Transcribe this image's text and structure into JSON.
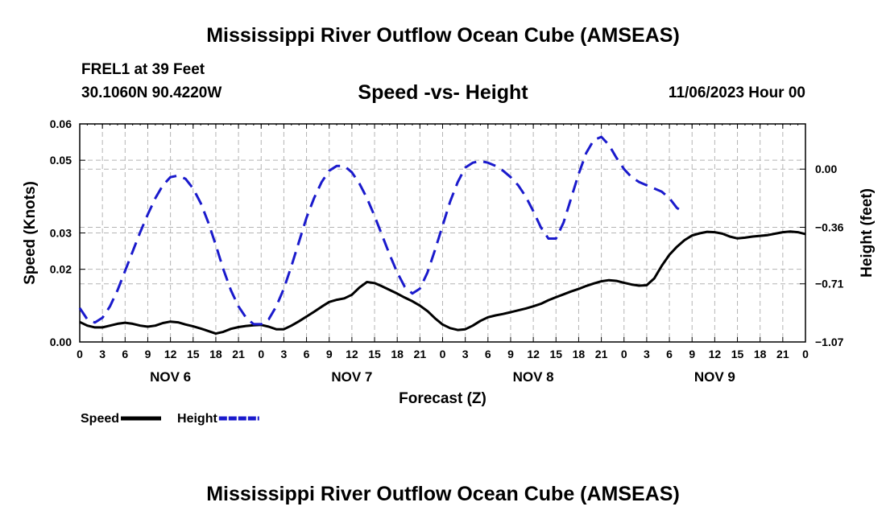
{
  "page": {
    "title": "Mississippi River Outflow Ocean Cube (AMSEAS)",
    "bottom_title": "Mississippi River Outflow Ocean Cube (AMSEAS)",
    "station": "FREL1 at 39 Feet",
    "coordinates": "30.1060N  90.4220W",
    "subtitle": "Speed -vs- Height",
    "datetime": "11/06/2023 Hour 00"
  },
  "chart_data": {
    "type": "line",
    "title": "Speed -vs- Height",
    "xlabel": "Forecast (Z)",
    "ylabel_left": "Speed (Knots)",
    "ylabel_right": "Height (feet)",
    "x_unit": "hours since 11/06/2023 00Z",
    "x_range": [
      0,
      96
    ],
    "x_tick_hours": [
      0,
      3,
      6,
      9,
      12,
      15,
      18,
      21,
      24,
      27,
      30,
      33,
      36,
      39,
      42,
      45,
      48,
      51,
      54,
      57,
      60,
      63,
      66,
      69,
      72,
      75,
      78,
      81,
      84,
      87,
      90,
      93,
      96
    ],
    "x_tick_labels": [
      "0",
      "3",
      "6",
      "9",
      "12",
      "15",
      "18",
      "21",
      "0",
      "3",
      "6",
      "9",
      "12",
      "15",
      "18",
      "21",
      "0",
      "3",
      "6",
      "9",
      "12",
      "15",
      "18",
      "21",
      "0",
      "3",
      "6",
      "9",
      "12",
      "15",
      "18",
      "21",
      "0"
    ],
    "day_labels": [
      {
        "label": "NOV 6",
        "hour": 12
      },
      {
        "label": "NOV 7",
        "hour": 36
      },
      {
        "label": "NOV 8",
        "hour": 60
      },
      {
        "label": "NOV 9",
        "hour": 84
      }
    ],
    "left_axis": {
      "range": [
        0,
        0.06
      ],
      "ticks": [
        0.0,
        0.02,
        0.03,
        0.05,
        0.06
      ],
      "tick_labels": [
        "0.00",
        "0.02",
        "0.03",
        "0.05",
        "0.06"
      ]
    },
    "right_axis": {
      "range": [
        -1.07,
        0.28
      ],
      "ticks": [
        -1.07,
        -0.71,
        -0.36,
        0.0
      ],
      "tick_labels": [
        "−1.07",
        "−0.71",
        "−0.36",
        "0.00"
      ]
    },
    "grid": true,
    "legend_position": "bottom-left",
    "series": [
      {
        "name": "Speed",
        "axis": "left",
        "color": "#000000",
        "dash": "solid",
        "points": [
          [
            0,
            0.0055
          ],
          [
            1,
            0.0045
          ],
          [
            2,
            0.004
          ],
          [
            3,
            0.004
          ],
          [
            4,
            0.0045
          ],
          [
            5,
            0.005
          ],
          [
            6,
            0.0053
          ],
          [
            7,
            0.005
          ],
          [
            8,
            0.0045
          ],
          [
            9,
            0.0042
          ],
          [
            10,
            0.0045
          ],
          [
            11,
            0.0052
          ],
          [
            12,
            0.0056
          ],
          [
            13,
            0.0054
          ],
          [
            14,
            0.0048
          ],
          [
            15,
            0.0043
          ],
          [
            16,
            0.0037
          ],
          [
            17,
            0.003
          ],
          [
            18,
            0.0023
          ],
          [
            19,
            0.0028
          ],
          [
            20,
            0.0036
          ],
          [
            21,
            0.0041
          ],
          [
            22,
            0.0044
          ],
          [
            23,
            0.0046
          ],
          [
            24,
            0.0047
          ],
          [
            25,
            0.0042
          ],
          [
            26,
            0.0035
          ],
          [
            27,
            0.0035
          ],
          [
            28,
            0.0045
          ],
          [
            29,
            0.0057
          ],
          [
            30,
            0.007
          ],
          [
            31,
            0.0083
          ],
          [
            32,
            0.0097
          ],
          [
            33,
            0.011
          ],
          [
            34,
            0.0116
          ],
          [
            35,
            0.012
          ],
          [
            36,
            0.013
          ],
          [
            37,
            0.015
          ],
          [
            38,
            0.0165
          ],
          [
            39,
            0.0162
          ],
          [
            40,
            0.0153
          ],
          [
            41,
            0.0143
          ],
          [
            42,
            0.0133
          ],
          [
            43,
            0.0122
          ],
          [
            44,
            0.0112
          ],
          [
            45,
            0.01
          ],
          [
            46,
            0.0085
          ],
          [
            47,
            0.0065
          ],
          [
            48,
            0.0048
          ],
          [
            49,
            0.0038
          ],
          [
            50,
            0.0033
          ],
          [
            51,
            0.0035
          ],
          [
            52,
            0.0045
          ],
          [
            53,
            0.0058
          ],
          [
            54,
            0.0068
          ],
          [
            55,
            0.0073
          ],
          [
            56,
            0.0077
          ],
          [
            57,
            0.0082
          ],
          [
            58,
            0.0087
          ],
          [
            59,
            0.0092
          ],
          [
            60,
            0.0098
          ],
          [
            61,
            0.0105
          ],
          [
            62,
            0.0115
          ],
          [
            63,
            0.0123
          ],
          [
            64,
            0.0131
          ],
          [
            65,
            0.0139
          ],
          [
            66,
            0.0146
          ],
          [
            67,
            0.0154
          ],
          [
            68,
            0.0161
          ],
          [
            69,
            0.0167
          ],
          [
            70,
            0.017
          ],
          [
            71,
            0.0168
          ],
          [
            72,
            0.0163
          ],
          [
            73,
            0.0158
          ],
          [
            74,
            0.0155
          ],
          [
            75,
            0.0156
          ],
          [
            76,
            0.0175
          ],
          [
            77,
            0.021
          ],
          [
            78,
            0.024
          ],
          [
            79,
            0.0262
          ],
          [
            80,
            0.028
          ],
          [
            81,
            0.0293
          ],
          [
            82,
            0.0299
          ],
          [
            83,
            0.0303
          ],
          [
            84,
            0.0302
          ],
          [
            85,
            0.0298
          ],
          [
            86,
            0.029
          ],
          [
            87,
            0.0285
          ],
          [
            88,
            0.0287
          ],
          [
            89,
            0.029
          ],
          [
            90,
            0.0292
          ],
          [
            91,
            0.0294
          ],
          [
            92,
            0.0298
          ],
          [
            93,
            0.0302
          ],
          [
            94,
            0.0304
          ],
          [
            95,
            0.0302
          ],
          [
            96,
            0.0297
          ]
        ]
      },
      {
        "name": "Height",
        "axis": "right",
        "color": "#1a1acc",
        "dash": "dashed",
        "points": [
          [
            0,
            -0.86
          ],
          [
            1,
            -0.93
          ],
          [
            2,
            -0.95
          ],
          [
            3,
            -0.92
          ],
          [
            4,
            -0.85
          ],
          [
            5,
            -0.75
          ],
          [
            6,
            -0.63
          ],
          [
            7,
            -0.51
          ],
          [
            8,
            -0.39
          ],
          [
            9,
            -0.28
          ],
          [
            10,
            -0.18
          ],
          [
            11,
            -0.1
          ],
          [
            12,
            -0.05
          ],
          [
            13,
            -0.04
          ],
          [
            14,
            -0.06
          ],
          [
            15,
            -0.12
          ],
          [
            16,
            -0.21
          ],
          [
            17,
            -0.33
          ],
          [
            18,
            -0.47
          ],
          [
            19,
            -0.62
          ],
          [
            20,
            -0.75
          ],
          [
            21,
            -0.85
          ],
          [
            22,
            -0.92
          ],
          [
            23,
            -0.96
          ],
          [
            24,
            -0.96
          ],
          [
            25,
            -0.93
          ],
          [
            26,
            -0.85
          ],
          [
            27,
            -0.74
          ],
          [
            28,
            -0.6
          ],
          [
            29,
            -0.45
          ],
          [
            30,
            -0.3
          ],
          [
            31,
            -0.18
          ],
          [
            32,
            -0.08
          ],
          [
            33,
            -0.01
          ],
          [
            34,
            0.02
          ],
          [
            35,
            0.02
          ],
          [
            36,
            -0.02
          ],
          [
            37,
            -0.09
          ],
          [
            38,
            -0.18
          ],
          [
            39,
            -0.29
          ],
          [
            40,
            -0.41
          ],
          [
            41,
            -0.53
          ],
          [
            42,
            -0.64
          ],
          [
            43,
            -0.73
          ],
          [
            44,
            -0.77
          ],
          [
            45,
            -0.74
          ],
          [
            46,
            -0.64
          ],
          [
            47,
            -0.5
          ],
          [
            48,
            -0.35
          ],
          [
            49,
            -0.2
          ],
          [
            50,
            -0.08
          ],
          [
            51,
            0.01
          ],
          [
            52,
            0.04
          ],
          [
            53,
            0.05
          ],
          [
            54,
            0.04
          ],
          [
            55,
            0.02
          ],
          [
            56,
            -0.01
          ],
          [
            57,
            -0.05
          ],
          [
            58,
            -0.1
          ],
          [
            59,
            -0.17
          ],
          [
            60,
            -0.26
          ],
          [
            61,
            -0.36
          ],
          [
            62,
            -0.43
          ],
          [
            63,
            -0.43
          ],
          [
            64,
            -0.33
          ],
          [
            65,
            -0.18
          ],
          [
            66,
            -0.03
          ],
          [
            67,
            0.1
          ],
          [
            68,
            0.18
          ],
          [
            69,
            0.2
          ],
          [
            70,
            0.15
          ],
          [
            71,
            0.07
          ],
          [
            72,
            0.0
          ],
          [
            73,
            -0.05
          ],
          [
            74,
            -0.08
          ],
          [
            75,
            -0.1
          ],
          [
            76,
            -0.12
          ],
          [
            77,
            -0.14
          ],
          [
            78,
            -0.18
          ],
          [
            79,
            -0.24
          ],
          [
            80,
            -0.27
          ]
        ]
      }
    ]
  }
}
